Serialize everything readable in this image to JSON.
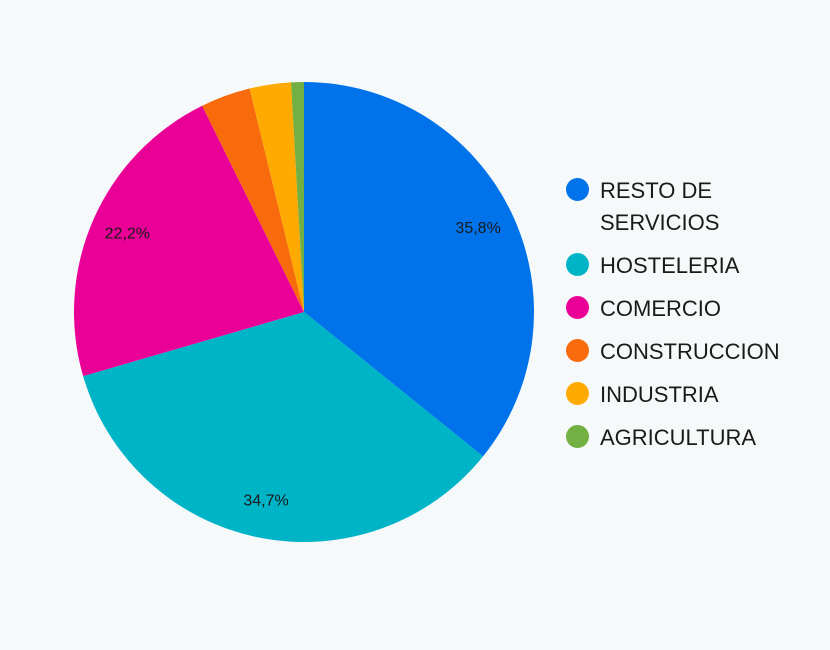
{
  "chart_data": {
    "type": "pie",
    "categories": [
      "RESTO DE SERVICIOS",
      "HOSTELERIA",
      "COMERCIO",
      "CONSTRUCCION",
      "INDUSTRIA",
      "AGRICULTURA"
    ],
    "values": [
      35.8,
      34.7,
      22.2,
      3.5,
      2.9,
      0.9
    ],
    "data_labels": [
      "35,8%",
      "34,7%",
      "22,2%",
      "",
      "",
      ""
    ],
    "colors": [
      "#0073ea",
      "#00b4c8",
      "#ea0096",
      "#f76b0d",
      "#ffaa00",
      "#73b043"
    ],
    "legend_position": "right"
  }
}
